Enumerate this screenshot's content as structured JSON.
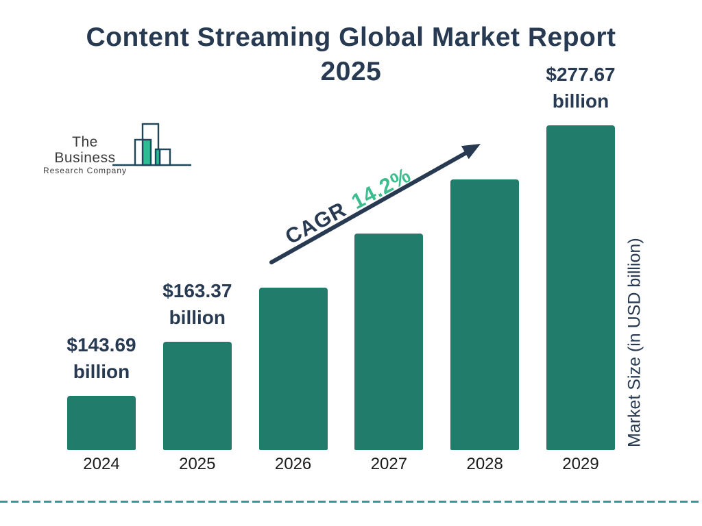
{
  "title": "Content Streaming Global Market Report 2025",
  "logo": {
    "name_line1": "The Business",
    "name_line2": "Research Company"
  },
  "cagr": {
    "label": "CAGR",
    "value": "14.2%"
  },
  "y_axis_label": "Market Size (in USD billion)",
  "colors": {
    "navy": "#273a52",
    "bar": "#217c6c",
    "green": "#3dbd8e",
    "dash": "#2a9d99",
    "logo-stroke": "#1e4558",
    "logo-green": "#2cbd92",
    "year": "#1b1b1b",
    "logo-text": "#3b3b3b"
  },
  "chart_data": {
    "type": "bar",
    "title": "Content Streaming Global Market Report 2025",
    "categories": [
      "2024",
      "2025",
      "2026",
      "2027",
      "2028",
      "2029"
    ],
    "values": [
      143.69,
      163.37,
      null,
      null,
      null,
      277.67
    ],
    "value_labels": [
      "$143.69 billion",
      "$163.37 billion",
      null,
      null,
      null,
      "$277.67 billion"
    ],
    "unit": "USD billion",
    "ylabel": "Market Size (in USD billion)",
    "annotation": "CAGR 14.2%",
    "bar_color": "#217c6c",
    "grid": false,
    "legend": false
  }
}
